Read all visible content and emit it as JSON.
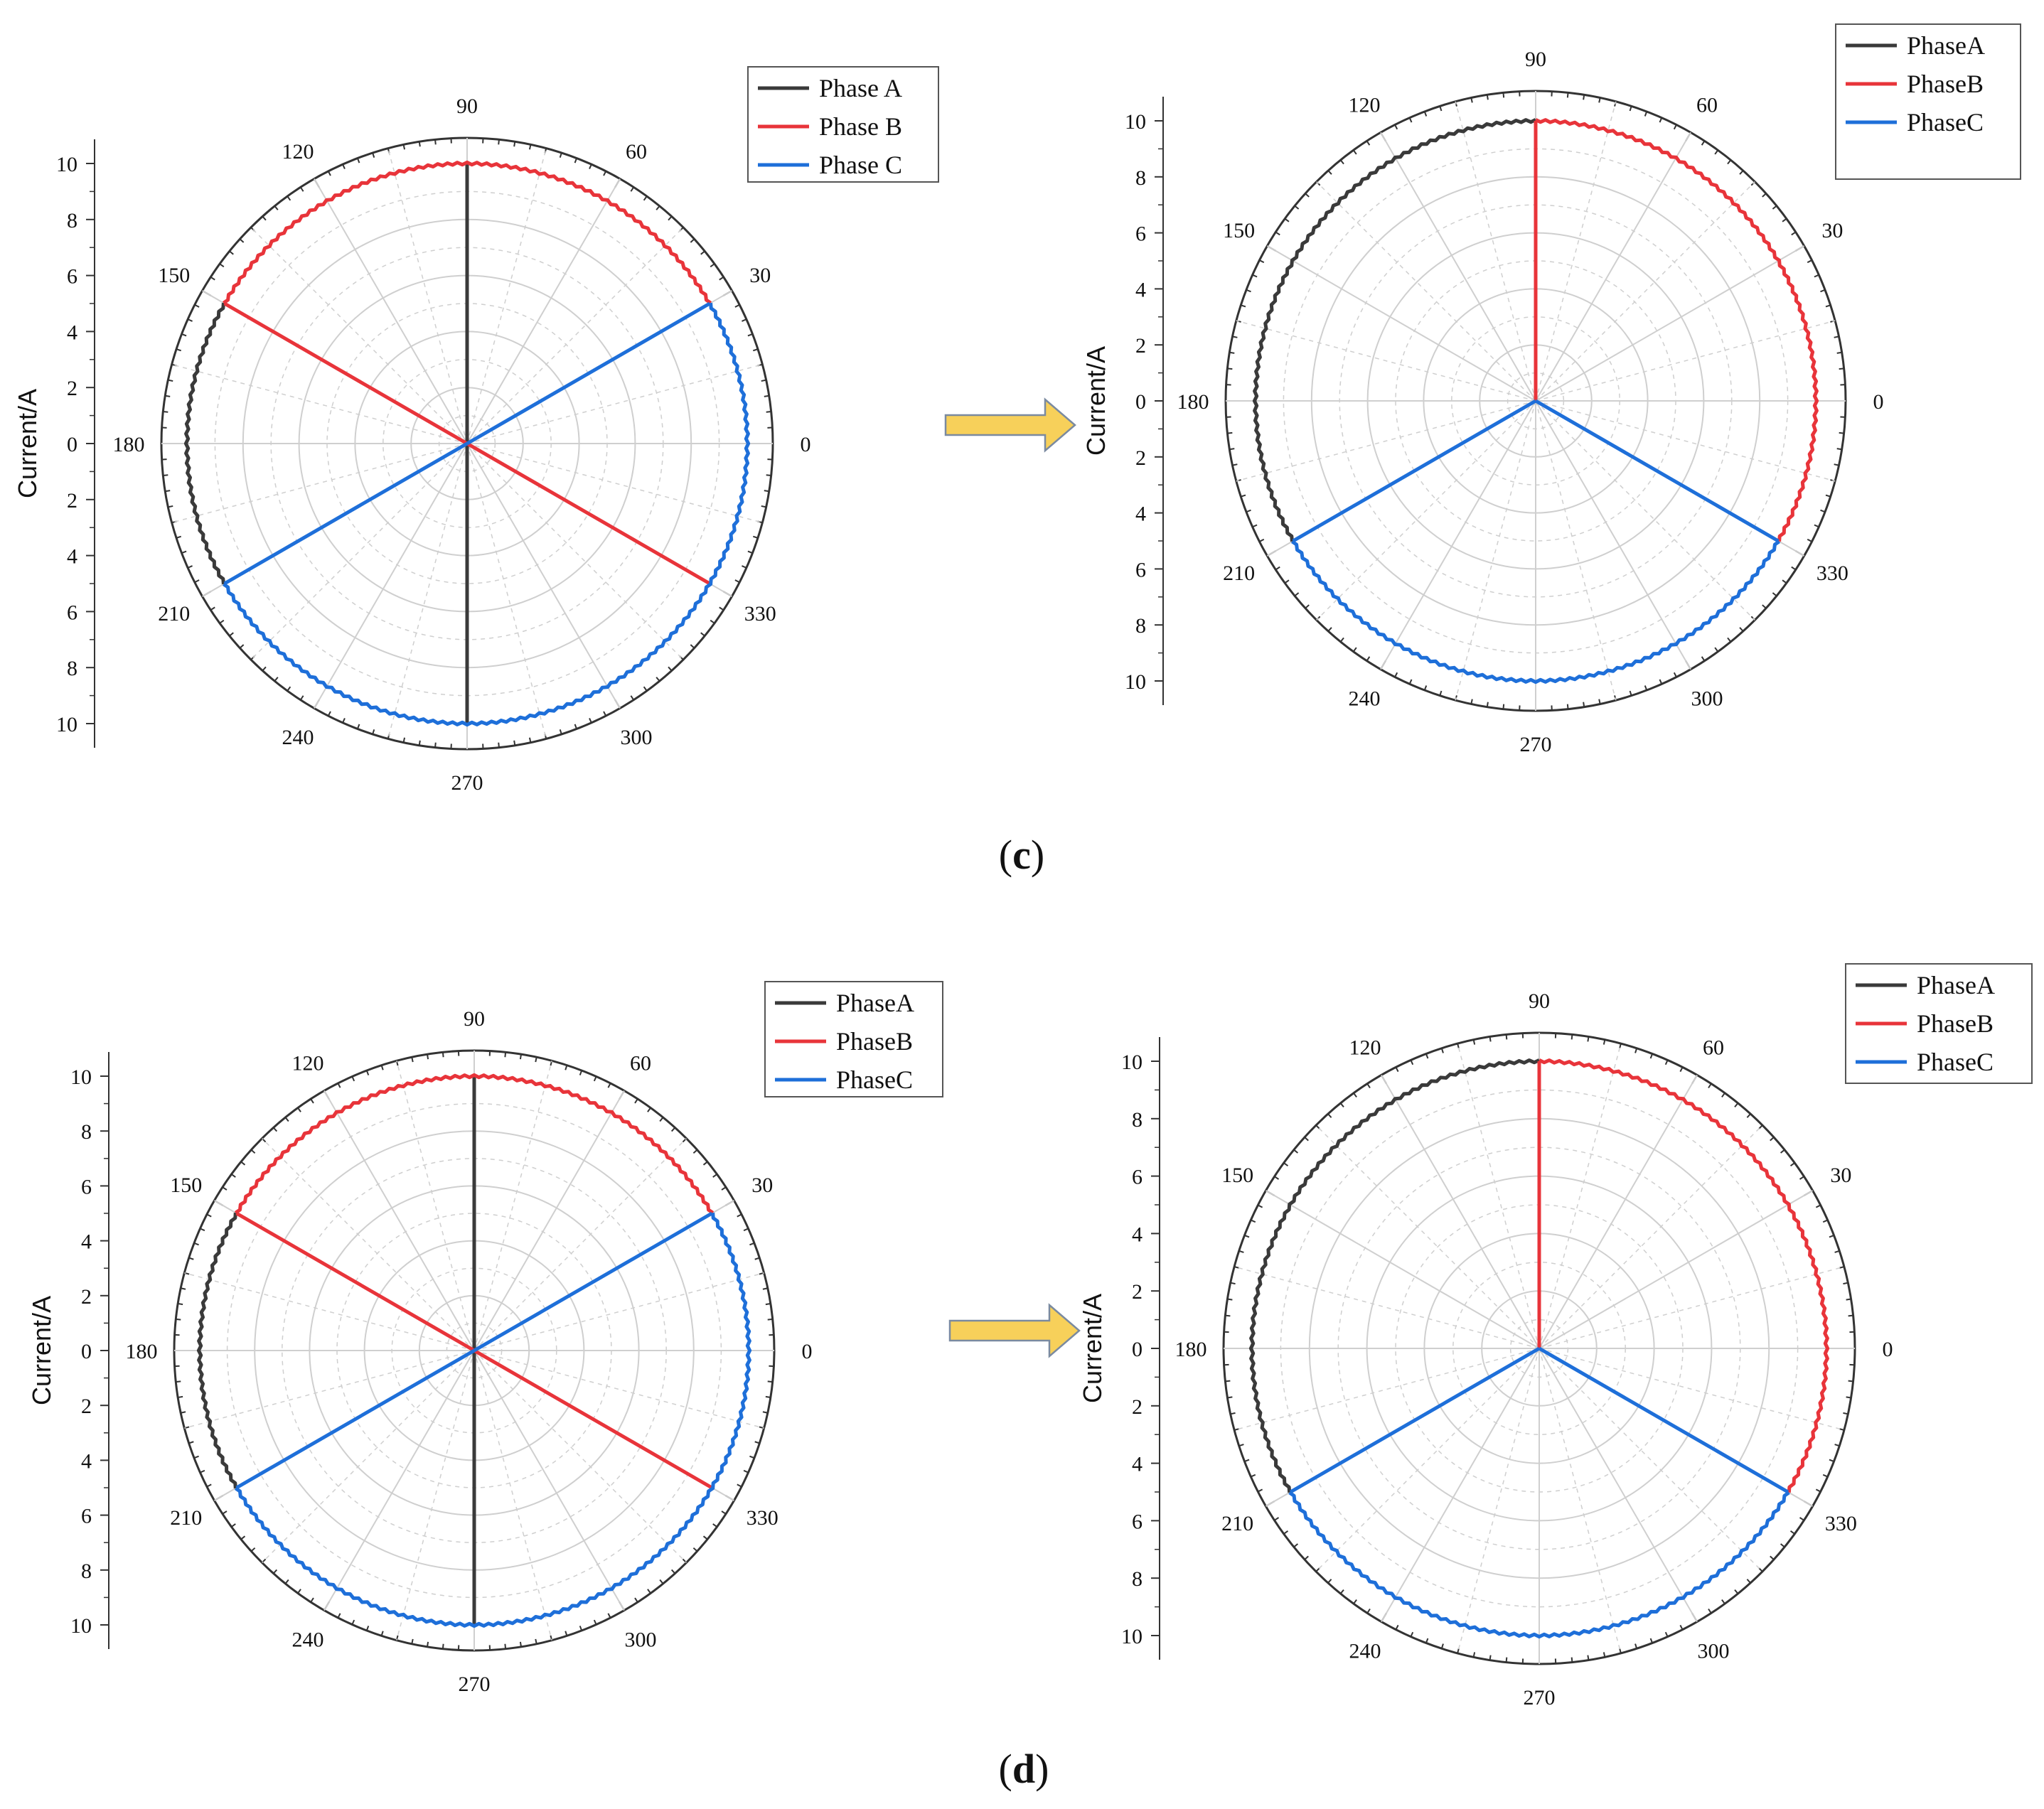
{
  "panels": [
    {
      "id": "c",
      "label": "c"
    },
    {
      "id": "d",
      "label": "d"
    }
  ],
  "colors": {
    "phase_a": "#3a3a3a",
    "phase_b": "#e8343a",
    "phase_c": "#1e6fd9",
    "arrow_fill": "#f7d05a",
    "arrow_stroke": "#7a8aa0",
    "grid": "#cfcfcf",
    "axis": "#333333"
  },
  "icons": {
    "arrow": "right-arrow-icon"
  },
  "chart_data": [
    {
      "type": "polar",
      "panel": "c",
      "ylabel": "Current/A",
      "radial_ticks": [
        "10",
        "8",
        "6",
        "4",
        "2",
        "0",
        "2",
        "4",
        "6",
        "8",
        "10"
      ],
      "radial_range": [
        0,
        10
      ],
      "angle_ticks": [
        "0",
        "30",
        "60",
        "90",
        "120",
        "150",
        "180",
        "210",
        "240",
        "270",
        "300",
        "330"
      ],
      "legend_location": "top-right",
      "series": [
        {
          "name": "Phase A",
          "color_key": "phase_a",
          "radius": 10,
          "arc_deg": [
            150,
            210
          ],
          "spokes_deg": [
            90,
            270
          ]
        },
        {
          "name": "Phase B",
          "color_key": "phase_b",
          "radius": 10,
          "arc_deg": [
            30,
            150
          ],
          "spokes_deg": [
            150,
            330
          ]
        },
        {
          "name": "Phase C",
          "color_key": "phase_c",
          "radius": 10,
          "arc_deg": [
            210,
            390
          ],
          "spokes_deg": [
            30,
            210
          ]
        }
      ]
    },
    {
      "type": "polar",
      "panel": "c",
      "ylabel": "Current/A",
      "radial_ticks": [
        "10",
        "8",
        "6",
        "4",
        "2",
        "0",
        "2",
        "4",
        "6",
        "8",
        "10"
      ],
      "radial_range": [
        0,
        10
      ],
      "angle_ticks": [
        "0",
        "30",
        "60",
        "90",
        "120",
        "150",
        "180",
        "210",
        "240",
        "270",
        "300",
        "330"
      ],
      "legend_location": "top-right",
      "series": [
        {
          "name": "PhaseA",
          "color_key": "phase_a",
          "radius": 10,
          "arc_deg": [
            90,
            210
          ],
          "spokes_deg": [
            90
          ]
        },
        {
          "name": "PhaseB",
          "color_key": "phase_b",
          "radius": 10,
          "arc_deg": [
            -30,
            90
          ],
          "spokes_deg": [
            90
          ]
        },
        {
          "name": "PhaseC",
          "color_key": "phase_c",
          "radius": 10,
          "arc_deg": [
            210,
            330
          ],
          "spokes_deg": [
            210,
            330
          ]
        }
      ]
    },
    {
      "type": "polar",
      "panel": "d",
      "ylabel": "Current/A",
      "radial_ticks": [
        "10",
        "8",
        "6",
        "4",
        "2",
        "0",
        "2",
        "4",
        "6",
        "8",
        "10"
      ],
      "radial_range": [
        0,
        10
      ],
      "angle_ticks": [
        "0",
        "30",
        "60",
        "90",
        "120",
        "150",
        "180",
        "210",
        "240",
        "270",
        "300",
        "330"
      ],
      "legend_location": "top-right",
      "series": [
        {
          "name": "PhaseA",
          "color_key": "phase_a",
          "radius": 10,
          "arc_deg": [
            150,
            210
          ],
          "spokes_deg": [
            90,
            270
          ]
        },
        {
          "name": "PhaseB",
          "color_key": "phase_b",
          "radius": 10,
          "arc_deg": [
            30,
            150
          ],
          "spokes_deg": [
            150,
            330
          ]
        },
        {
          "name": "PhaseC",
          "color_key": "phase_c",
          "radius": 10,
          "arc_deg": [
            210,
            390
          ],
          "spokes_deg": [
            30,
            210
          ]
        }
      ]
    },
    {
      "type": "polar",
      "panel": "d",
      "ylabel": "Current/A",
      "radial_ticks": [
        "10",
        "8",
        "6",
        "4",
        "2",
        "0",
        "2",
        "4",
        "6",
        "8",
        "10"
      ],
      "radial_range": [
        0,
        10
      ],
      "angle_ticks": [
        "0",
        "30",
        "60",
        "90",
        "120",
        "150",
        "180",
        "210",
        "240",
        "270",
        "300",
        "330"
      ],
      "legend_location": "top-right",
      "series": [
        {
          "name": "PhaseA",
          "color_key": "phase_a",
          "radius": 10,
          "arc_deg": [
            90,
            210
          ],
          "spokes_deg": [
            90
          ]
        },
        {
          "name": "PhaseB",
          "color_key": "phase_b",
          "radius": 10,
          "arc_deg": [
            -30,
            90
          ],
          "spokes_deg": [
            90
          ]
        },
        {
          "name": "PhaseC",
          "color_key": "phase_c",
          "radius": 10,
          "arc_deg": [
            210,
            330
          ],
          "spokes_deg": [
            210,
            330
          ]
        }
      ]
    }
  ]
}
